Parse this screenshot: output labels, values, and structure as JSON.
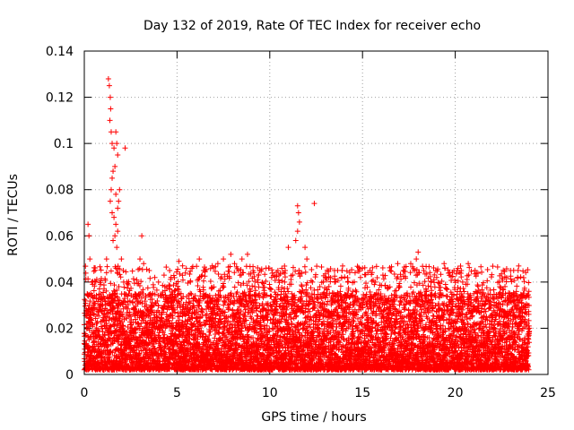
{
  "chart_data": {
    "type": "scatter",
    "title": "Day 132 of 2019, Rate Of TEC Index for receiver echo",
    "xlabel": "GPS time / hours",
    "ylabel": "ROTI / TECUs",
    "xlim": [
      0,
      25
    ],
    "ylim": [
      0,
      0.14
    ],
    "xticks": [
      0,
      5,
      10,
      15,
      20,
      25
    ],
    "yticks": [
      0,
      0.02,
      0.04,
      0.06,
      0.08,
      0.1,
      0.12,
      0.14
    ],
    "xtick_labels": [
      "0",
      "5",
      "10",
      "15",
      "20",
      "25"
    ],
    "ytick_labels": [
      "0",
      "0.02",
      "0.04",
      "0.06",
      "0.08",
      "0.1",
      "0.12",
      "0.14"
    ],
    "grid": true,
    "marker": "+",
    "color": "#ff0000",
    "series": [
      {
        "name": "ROTI",
        "points": [
          [
            0.2,
            0.065
          ],
          [
            0.25,
            0.06
          ],
          [
            0.3,
            0.05
          ],
          [
            0.45,
            0.039
          ],
          [
            0.35,
            0.028
          ],
          [
            0.15,
            0.022
          ],
          [
            0.1,
            0.012
          ],
          [
            0.5,
            0.03
          ],
          [
            1.3,
            0.128
          ],
          [
            1.35,
            0.125
          ],
          [
            1.4,
            0.12
          ],
          [
            1.42,
            0.115
          ],
          [
            1.38,
            0.11
          ],
          [
            1.45,
            0.105
          ],
          [
            1.5,
            0.1
          ],
          [
            1.6,
            0.098
          ],
          [
            1.7,
            0.105
          ],
          [
            1.75,
            0.1
          ],
          [
            1.8,
            0.095
          ],
          [
            1.65,
            0.09
          ],
          [
            1.55,
            0.088
          ],
          [
            1.5,
            0.085
          ],
          [
            1.45,
            0.08
          ],
          [
            1.7,
            0.078
          ],
          [
            1.4,
            0.075
          ],
          [
            1.8,
            0.072
          ],
          [
            1.5,
            0.07
          ],
          [
            1.6,
            0.068
          ],
          [
            1.7,
            0.065
          ],
          [
            1.65,
            0.06
          ],
          [
            1.55,
            0.058
          ],
          [
            1.75,
            0.055
          ],
          [
            1.2,
            0.05
          ],
          [
            2.2,
            0.098
          ],
          [
            1.9,
            0.08
          ],
          [
            1.85,
            0.075
          ],
          [
            1.8,
            0.062
          ],
          [
            2.0,
            0.05
          ],
          [
            2.1,
            0.045
          ],
          [
            2.3,
            0.04
          ],
          [
            3.1,
            0.06
          ],
          [
            3.0,
            0.05
          ],
          [
            3.2,
            0.048
          ],
          [
            3.5,
            0.045
          ],
          [
            3.8,
            0.042
          ],
          [
            4.0,
            0.04
          ],
          [
            4.3,
            0.043
          ],
          [
            4.6,
            0.045
          ],
          [
            5.1,
            0.049
          ],
          [
            5.3,
            0.047
          ],
          [
            5.8,
            0.046
          ],
          [
            6.2,
            0.05
          ],
          [
            6.5,
            0.045
          ],
          [
            6.9,
            0.047
          ],
          [
            7.2,
            0.048
          ],
          [
            7.5,
            0.05
          ],
          [
            7.9,
            0.052
          ],
          [
            8.1,
            0.048
          ],
          [
            8.5,
            0.05
          ],
          [
            8.8,
            0.052
          ],
          [
            9.1,
            0.045
          ],
          [
            9.4,
            0.043
          ],
          [
            9.8,
            0.046
          ],
          [
            10.1,
            0.042
          ],
          [
            10.5,
            0.043
          ],
          [
            10.8,
            0.04
          ],
          [
            11.0,
            0.055
          ],
          [
            11.5,
            0.073
          ],
          [
            11.55,
            0.07
          ],
          [
            11.6,
            0.066
          ],
          [
            11.5,
            0.062
          ],
          [
            11.4,
            0.058
          ],
          [
            11.9,
            0.055
          ],
          [
            12.0,
            0.05
          ],
          [
            12.4,
            0.074
          ],
          [
            12.3,
            0.04
          ],
          [
            12.7,
            0.038
          ],
          [
            13.0,
            0.042
          ],
          [
            13.5,
            0.04
          ],
          [
            13.9,
            0.045
          ],
          [
            14.2,
            0.04
          ],
          [
            14.6,
            0.044
          ],
          [
            15.0,
            0.046
          ],
          [
            15.4,
            0.045
          ],
          [
            15.7,
            0.04
          ],
          [
            16.1,
            0.043
          ],
          [
            16.5,
            0.045
          ],
          [
            16.9,
            0.048
          ],
          [
            17.2,
            0.045
          ],
          [
            17.6,
            0.048
          ],
          [
            18.0,
            0.053
          ],
          [
            17.9,
            0.05
          ],
          [
            18.3,
            0.045
          ],
          [
            18.7,
            0.04
          ],
          [
            19.0,
            0.042
          ],
          [
            19.4,
            0.048
          ],
          [
            19.7,
            0.044
          ],
          [
            20.1,
            0.045
          ],
          [
            20.4,
            0.04
          ],
          [
            20.7,
            0.048
          ],
          [
            21.0,
            0.035
          ],
          [
            21.4,
            0.033
          ],
          [
            21.8,
            0.032
          ],
          [
            22.1,
            0.03
          ],
          [
            22.4,
            0.038
          ],
          [
            22.7,
            0.032
          ],
          [
            23.0,
            0.033
          ],
          [
            23.3,
            0.028
          ],
          [
            23.6,
            0.025
          ],
          [
            23.8,
            0.027
          ],
          [
            23.9,
            0.03
          ],
          [
            24.0,
            0.02
          ]
        ],
        "noise_band": {
          "x_start": 0.0,
          "x_end": 24.0,
          "min_value": 0.002,
          "typical_max": 0.035,
          "peak_max": 0.055,
          "density": "very dense"
        }
      }
    ]
  }
}
